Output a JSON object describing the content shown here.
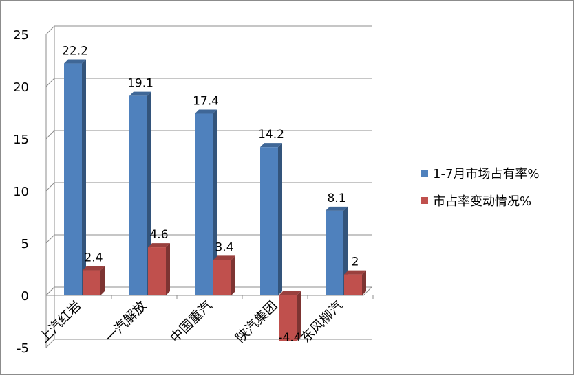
{
  "chart_data": {
    "type": "bar",
    "style": "3d-clustered-column",
    "categories": [
      "上汽红岩",
      "一汽解放",
      "中国重汽",
      "陕汽集团",
      "东风柳汽"
    ],
    "series": [
      {
        "name": "1-7月市场占有率%",
        "values": [
          22.2,
          19.1,
          17.4,
          14.2,
          8.1
        ],
        "color": "#4f81bd"
      },
      {
        "name": "市占率变动情况%",
        "values": [
          2.4,
          4.6,
          3.4,
          -4.4,
          2
        ],
        "color": "#c0504d"
      }
    ],
    "data_labels": [
      [
        "22.2",
        "19.1",
        "17.4",
        "14.2",
        "8.1"
      ],
      [
        "2.4",
        "4.6",
        "3.4",
        "-4.4",
        "2"
      ]
    ],
    "yticks": [
      "-5",
      "0",
      "5",
      "10",
      "15",
      "20",
      "25"
    ],
    "ylim": [
      -5,
      25
    ],
    "grid": true,
    "legend_position": "right"
  }
}
